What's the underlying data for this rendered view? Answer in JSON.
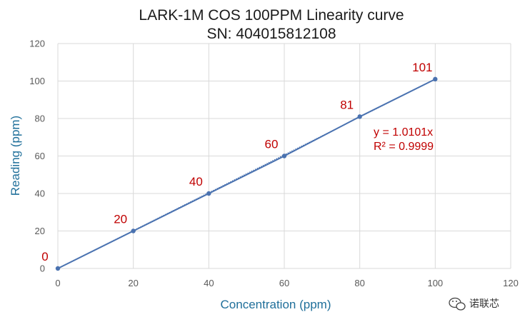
{
  "chart_data": {
    "type": "scatter",
    "title": "LARK-1M COS 100PPM Linearity curve",
    "subtitle": "SN: 404015812108",
    "xlabel": "Concentration (ppm)",
    "ylabel": "Reading (ppm)",
    "xlim": [
      0,
      120
    ],
    "ylim": [
      0,
      120
    ],
    "xticks": [
      "0",
      "20",
      "40",
      "60",
      "80",
      "100",
      "120"
    ],
    "yticks": [
      "0",
      "20",
      "40",
      "60",
      "80",
      "100",
      "120"
    ],
    "grid": true,
    "series": [
      {
        "x": [
          0,
          20,
          40,
          60,
          80,
          100
        ],
        "y": [
          0,
          20,
          40,
          60,
          81,
          101
        ],
        "labels": [
          "0",
          "20",
          "40",
          "60",
          "81",
          "101"
        ],
        "color": "#4a72b0"
      }
    ],
    "trendline": {
      "type": "linear-through-origin",
      "slope": 1.0101,
      "equation": "y = 1.0101x",
      "r_squared": "R² = 0.9999",
      "color": "#4a72b0"
    }
  },
  "watermark": {
    "text": "诺联芯",
    "icon": "wechat-icon"
  }
}
